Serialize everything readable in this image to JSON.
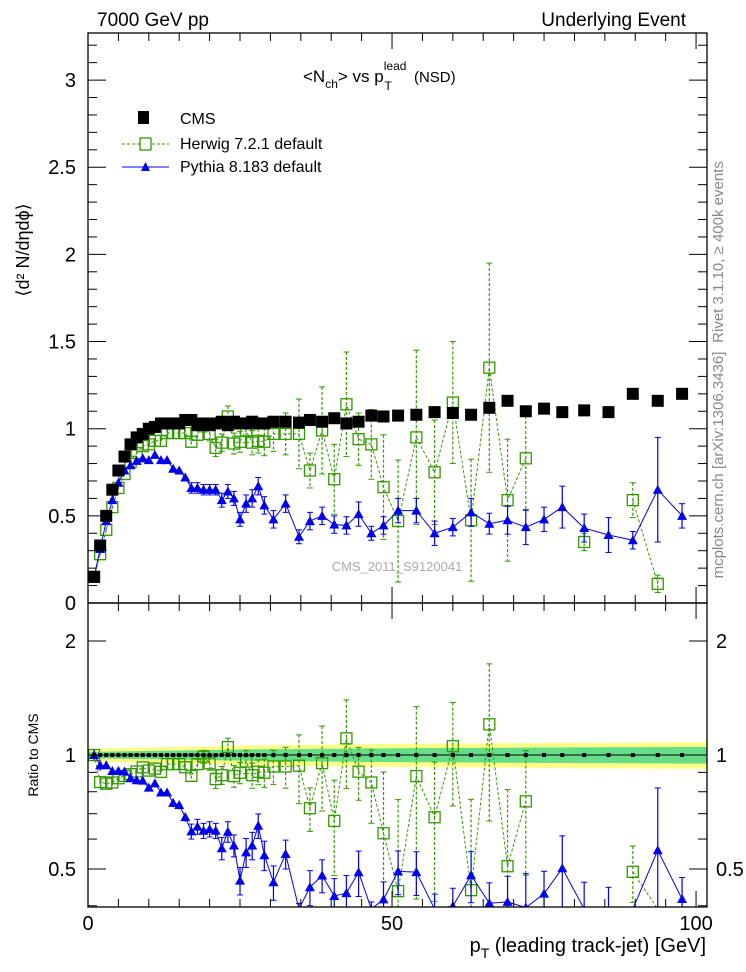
{
  "header": {
    "left": "7000 GeV pp",
    "right": "Underlying Event"
  },
  "side_text": {
    "top": "Rivet 3.1.10, ≥ 400k events",
    "bottom": "mcplots.cern.ch [arXiv:1306.3436]"
  },
  "watermark": "CMS_2011_S9120041",
  "chart_data": {
    "type": "scatter",
    "title": {
      "main": "<N",
      "sub1": "ch",
      "mid": "> vs p",
      "sup": "lead",
      "sub2": "T",
      "tail": " (NSD)"
    },
    "ylabel": "⟨d² N/dηdϕ⟩",
    "xlabel": "p_T (leading track-jet) [GeV]",
    "xlabel_parts": {
      "p": "p",
      "sub": "T",
      "rest": " (leading track-jet) [GeV]"
    },
    "ratio_ylabel": "Ratio to CMS",
    "xlim": [
      0,
      101.8
    ],
    "ylim": [
      0,
      3.27
    ],
    "ratio_ylim": [
      0.397,
      2.52
    ],
    "ratio_scale": "log",
    "xticks": [
      "0",
      "50",
      "100"
    ],
    "yticks": [
      "0",
      "0.5",
      "1",
      "1.5",
      "2",
      "2.5",
      "3"
    ],
    "ratio_yticks": [
      "0.5",
      "1",
      "2"
    ],
    "legend_position": "top-left",
    "x": [
      1,
      2,
      3,
      4,
      5,
      6,
      7,
      8,
      9,
      10,
      11,
      12,
      13,
      14,
      15,
      16,
      17,
      18,
      19,
      20,
      21,
      22,
      23,
      24,
      25,
      26,
      27,
      28,
      29,
      30.5,
      32.5,
      34.7,
      36.5,
      38.5,
      40.5,
      42.5,
      44.5,
      46.6,
      48.6,
      51,
      54,
      57,
      60,
      63,
      66,
      69,
      72,
      75,
      78,
      81.6,
      85.6,
      89.6,
      93.7,
      97.7
    ],
    "series": [
      {
        "name": "CMS",
        "color": "#000000",
        "marker": "square-filled",
        "values": [
          0.15,
          0.33,
          0.5,
          0.65,
          0.76,
          0.84,
          0.91,
          0.95,
          0.97,
          1.0,
          1.01,
          1.03,
          1.03,
          1.03,
          1.03,
          1.05,
          1.05,
          1.02,
          1.03,
          1.02,
          1.03,
          1.04,
          1.02,
          1.04,
          1.03,
          1.03,
          1.04,
          1.03,
          1.03,
          1.04,
          1.04,
          1.035,
          1.05,
          1.04,
          1.06,
          1.03,
          1.04,
          1.075,
          1.07,
          1.075,
          1.08,
          1.095,
          1.09,
          1.08,
          1.12,
          1.16,
          1.1,
          1.115,
          1.095,
          1.105,
          1.095,
          1.2,
          1.16,
          1.2
        ]
      },
      {
        "name": "Herwig 7.2.1 default",
        "color": "#339900",
        "marker": "square-open",
        "line": "dashed",
        "values": [
          0.15,
          0.28,
          0.42,
          0.55,
          0.66,
          0.74,
          0.81,
          0.86,
          0.9,
          0.91,
          0.93,
          0.93,
          0.975,
          0.975,
          0.975,
          0.975,
          0.925,
          0.965,
          1.02,
          0.97,
          0.89,
          0.92,
          1.07,
          0.915,
          0.925,
          0.99,
          0.92,
          0.93,
          0.925,
          0.97,
          0.97,
          0.97,
          0.76,
          0.99,
          0.71,
          1.14,
          0.94,
          0.91,
          0.665,
          0.47,
          0.95,
          0.75,
          1.15,
          0.475,
          1.35,
          0.59,
          0.83,
          null,
          null,
          0.35,
          null,
          0.59,
          0.11,
          null
        ],
        "errors": [
          0.005,
          0.01,
          0.01,
          0.01,
          0.01,
          0.01,
          0.01,
          0.01,
          0.01,
          0.01,
          0.015,
          0.015,
          0.02,
          0.02,
          0.02,
          0.02,
          0.03,
          0.03,
          0.04,
          0.04,
          0.05,
          0.05,
          0.06,
          0.06,
          0.06,
          0.07,
          0.07,
          0.07,
          0.08,
          0.1,
          0.12,
          0.2,
          0.1,
          0.25,
          0.2,
          0.3,
          0.15,
          0.2,
          0.3,
          0.35,
          0.5,
          0.3,
          0.35,
          0.35,
          0.6,
          0.35,
          0.3,
          null,
          null,
          0.05,
          null,
          0.1,
          0.05,
          null
        ]
      },
      {
        "name": "Pythia 8.183 default",
        "color": "#0000ee",
        "marker": "triangle",
        "line": "solid",
        "values": [
          0.15,
          0.31,
          0.47,
          0.59,
          0.69,
          0.76,
          0.79,
          0.815,
          0.83,
          0.82,
          0.85,
          0.82,
          0.82,
          0.77,
          0.76,
          0.72,
          0.66,
          0.66,
          0.65,
          0.65,
          0.65,
          0.59,
          0.64,
          0.6,
          0.48,
          0.57,
          0.6,
          0.67,
          0.56,
          0.48,
          0.57,
          0.38,
          0.47,
          0.5,
          0.45,
          0.445,
          0.51,
          0.4,
          0.445,
          0.53,
          0.53,
          0.4,
          0.435,
          0.52,
          0.455,
          0.475,
          0.435,
          0.48,
          0.55,
          0.43,
          0.39,
          0.36,
          0.65,
          0.5
        ],
        "errors": [
          0.005,
          0.01,
          0.01,
          0.01,
          0.01,
          0.01,
          0.01,
          0.01,
          0.01,
          0.01,
          0.015,
          0.015,
          0.015,
          0.02,
          0.02,
          0.02,
          0.03,
          0.03,
          0.03,
          0.03,
          0.03,
          0.04,
          0.04,
          0.04,
          0.04,
          0.05,
          0.05,
          0.05,
          0.05,
          0.05,
          0.05,
          0.04,
          0.05,
          0.05,
          0.05,
          0.05,
          0.07,
          0.04,
          0.05,
          0.07,
          0.07,
          0.07,
          0.05,
          0.08,
          0.06,
          0.08,
          0.1,
          0.07,
          0.12,
          0.08,
          0.1,
          0.05,
          0.3,
          0.07
        ]
      }
    ],
    "ratio_band": {
      "inner_color": "#66dd88",
      "outer_color": "#ffff88",
      "inner_halfwidth": [
        0.02,
        0.05
      ],
      "outer_halfwidth": [
        0.04,
        0.08
      ]
    }
  }
}
